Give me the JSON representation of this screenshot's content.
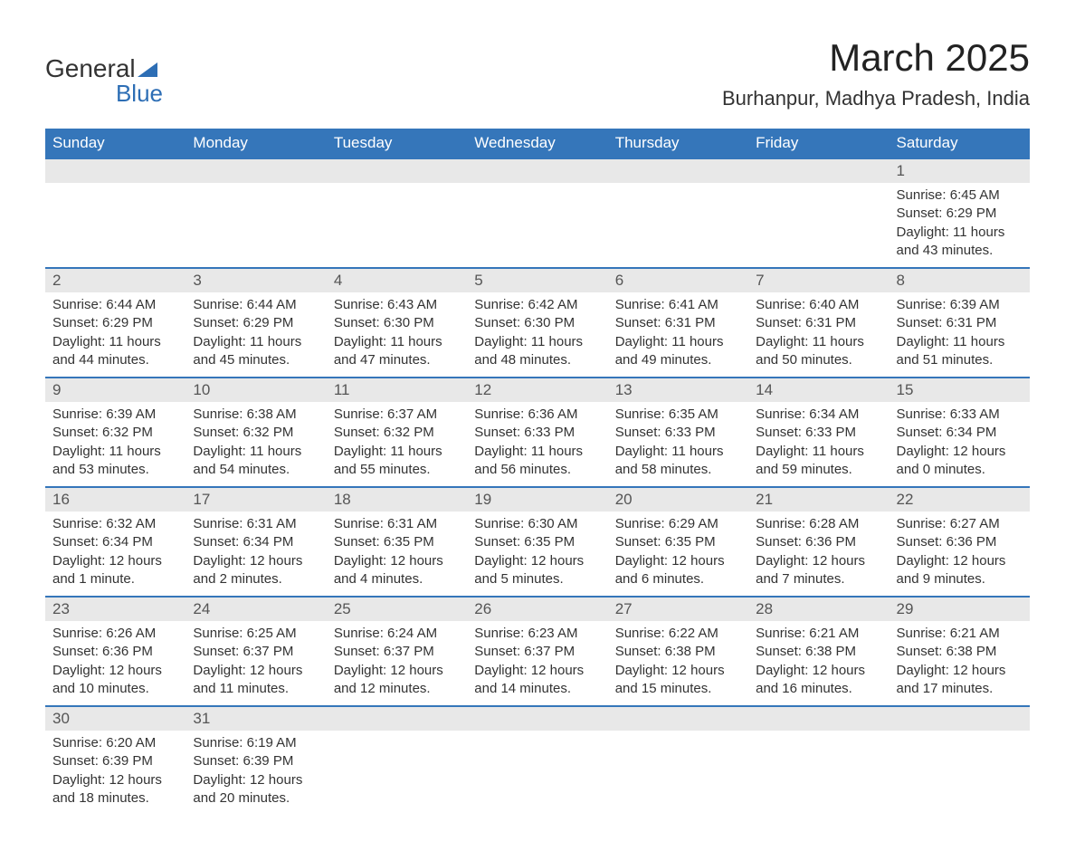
{
  "logo": {
    "text_general": "General",
    "text_blue": "Blue"
  },
  "header": {
    "month_title": "March 2025",
    "location": "Burhanpur, Madhya Pradesh, India"
  },
  "colors": {
    "header_bg": "#3576ba",
    "header_text": "#ffffff",
    "day_number_bg": "#e8e8e8",
    "day_number_text": "#555555",
    "body_text": "#333333",
    "row_border": "#3576ba",
    "logo_blue": "#2d6eb5",
    "background": "#ffffff"
  },
  "typography": {
    "month_title_fontsize": 42,
    "location_fontsize": 22,
    "weekday_fontsize": 17,
    "day_number_fontsize": 17,
    "day_content_fontsize": 15,
    "logo_fontsize": 28
  },
  "weekdays": [
    "Sunday",
    "Monday",
    "Tuesday",
    "Wednesday",
    "Thursday",
    "Friday",
    "Saturday"
  ],
  "calendar": {
    "type": "table",
    "first_day_column_index": 6,
    "days_in_month": 31,
    "days": [
      {
        "n": 1,
        "sunrise": "6:45 AM",
        "sunset": "6:29 PM",
        "daylight": "11 hours and 43 minutes."
      },
      {
        "n": 2,
        "sunrise": "6:44 AM",
        "sunset": "6:29 PM",
        "daylight": "11 hours and 44 minutes."
      },
      {
        "n": 3,
        "sunrise": "6:44 AM",
        "sunset": "6:29 PM",
        "daylight": "11 hours and 45 minutes."
      },
      {
        "n": 4,
        "sunrise": "6:43 AM",
        "sunset": "6:30 PM",
        "daylight": "11 hours and 47 minutes."
      },
      {
        "n": 5,
        "sunrise": "6:42 AM",
        "sunset": "6:30 PM",
        "daylight": "11 hours and 48 minutes."
      },
      {
        "n": 6,
        "sunrise": "6:41 AM",
        "sunset": "6:31 PM",
        "daylight": "11 hours and 49 minutes."
      },
      {
        "n": 7,
        "sunrise": "6:40 AM",
        "sunset": "6:31 PM",
        "daylight": "11 hours and 50 minutes."
      },
      {
        "n": 8,
        "sunrise": "6:39 AM",
        "sunset": "6:31 PM",
        "daylight": "11 hours and 51 minutes."
      },
      {
        "n": 9,
        "sunrise": "6:39 AM",
        "sunset": "6:32 PM",
        "daylight": "11 hours and 53 minutes."
      },
      {
        "n": 10,
        "sunrise": "6:38 AM",
        "sunset": "6:32 PM",
        "daylight": "11 hours and 54 minutes."
      },
      {
        "n": 11,
        "sunrise": "6:37 AM",
        "sunset": "6:32 PM",
        "daylight": "11 hours and 55 minutes."
      },
      {
        "n": 12,
        "sunrise": "6:36 AM",
        "sunset": "6:33 PM",
        "daylight": "11 hours and 56 minutes."
      },
      {
        "n": 13,
        "sunrise": "6:35 AM",
        "sunset": "6:33 PM",
        "daylight": "11 hours and 58 minutes."
      },
      {
        "n": 14,
        "sunrise": "6:34 AM",
        "sunset": "6:33 PM",
        "daylight": "11 hours and 59 minutes."
      },
      {
        "n": 15,
        "sunrise": "6:33 AM",
        "sunset": "6:34 PM",
        "daylight": "12 hours and 0 minutes."
      },
      {
        "n": 16,
        "sunrise": "6:32 AM",
        "sunset": "6:34 PM",
        "daylight": "12 hours and 1 minute."
      },
      {
        "n": 17,
        "sunrise": "6:31 AM",
        "sunset": "6:34 PM",
        "daylight": "12 hours and 2 minutes."
      },
      {
        "n": 18,
        "sunrise": "6:31 AM",
        "sunset": "6:35 PM",
        "daylight": "12 hours and 4 minutes."
      },
      {
        "n": 19,
        "sunrise": "6:30 AM",
        "sunset": "6:35 PM",
        "daylight": "12 hours and 5 minutes."
      },
      {
        "n": 20,
        "sunrise": "6:29 AM",
        "sunset": "6:35 PM",
        "daylight": "12 hours and 6 minutes."
      },
      {
        "n": 21,
        "sunrise": "6:28 AM",
        "sunset": "6:36 PM",
        "daylight": "12 hours and 7 minutes."
      },
      {
        "n": 22,
        "sunrise": "6:27 AM",
        "sunset": "6:36 PM",
        "daylight": "12 hours and 9 minutes."
      },
      {
        "n": 23,
        "sunrise": "6:26 AM",
        "sunset": "6:36 PM",
        "daylight": "12 hours and 10 minutes."
      },
      {
        "n": 24,
        "sunrise": "6:25 AM",
        "sunset": "6:37 PM",
        "daylight": "12 hours and 11 minutes."
      },
      {
        "n": 25,
        "sunrise": "6:24 AM",
        "sunset": "6:37 PM",
        "daylight": "12 hours and 12 minutes."
      },
      {
        "n": 26,
        "sunrise": "6:23 AM",
        "sunset": "6:37 PM",
        "daylight": "12 hours and 14 minutes."
      },
      {
        "n": 27,
        "sunrise": "6:22 AM",
        "sunset": "6:38 PM",
        "daylight": "12 hours and 15 minutes."
      },
      {
        "n": 28,
        "sunrise": "6:21 AM",
        "sunset": "6:38 PM",
        "daylight": "12 hours and 16 minutes."
      },
      {
        "n": 29,
        "sunrise": "6:21 AM",
        "sunset": "6:38 PM",
        "daylight": "12 hours and 17 minutes."
      },
      {
        "n": 30,
        "sunrise": "6:20 AM",
        "sunset": "6:39 PM",
        "daylight": "12 hours and 18 minutes."
      },
      {
        "n": 31,
        "sunrise": "6:19 AM",
        "sunset": "6:39 PM",
        "daylight": "12 hours and 20 minutes."
      }
    ]
  },
  "labels": {
    "sunrise": "Sunrise:",
    "sunset": "Sunset:",
    "daylight": "Daylight:"
  }
}
